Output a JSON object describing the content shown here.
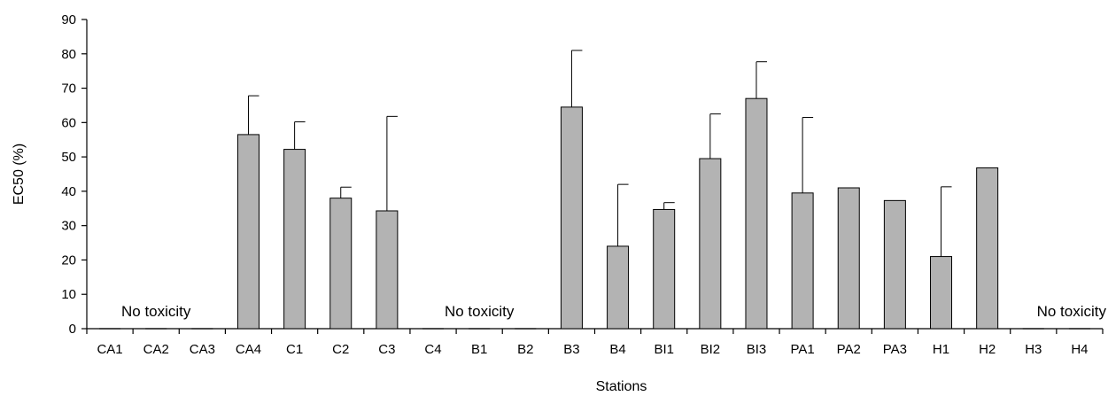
{
  "chart_data": {
    "type": "bar",
    "xlabel": "Stations",
    "ylabel": "EC50 (%)",
    "ylim": [
      0,
      90
    ],
    "yticks": [
      0,
      10,
      20,
      30,
      40,
      50,
      60,
      70,
      80,
      90
    ],
    "categories": [
      "CA1",
      "CA2",
      "CA3",
      "CA4",
      "C1",
      "C2",
      "C3",
      "C4",
      "B1",
      "B2",
      "B3",
      "B4",
      "BI1",
      "BI2",
      "BI3",
      "PA1",
      "PA2",
      "PA3",
      "H1",
      "H2",
      "H3",
      "H4"
    ],
    "values": [
      0,
      0,
      0,
      56.5,
      52.2,
      38,
      34.3,
      0,
      0,
      0,
      64.5,
      24,
      34.7,
      49.5,
      67,
      39.5,
      41,
      37.3,
      21,
      46.8,
      0,
      0
    ],
    "error_upper": [
      null,
      null,
      null,
      67.8,
      60.2,
      41.2,
      61.8,
      null,
      null,
      null,
      81,
      42,
      36.7,
      62.5,
      77.7,
      61.5,
      null,
      null,
      41.3,
      null,
      null,
      null
    ],
    "bar_color": "#b3b3b3",
    "grid": false,
    "annotations": [
      {
        "text": "No toxicity",
        "category": "CA2"
      },
      {
        "text": "No toxicity",
        "category": "B1"
      },
      {
        "text": "No toxicity",
        "category": "H4"
      }
    ]
  }
}
